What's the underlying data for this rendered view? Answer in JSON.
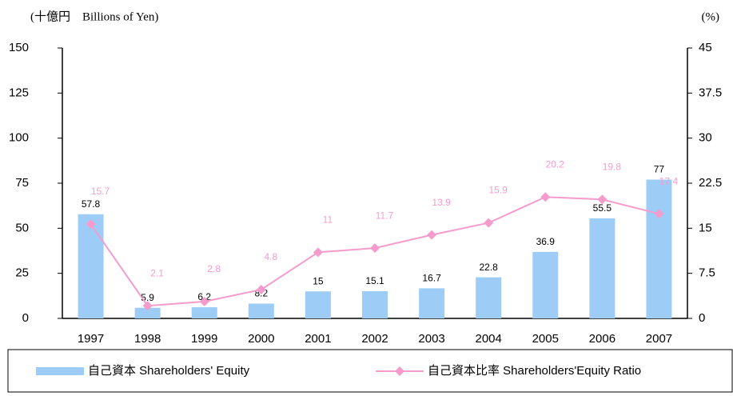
{
  "chart_data": {
    "type": "bar-line",
    "y_label": "(十億円　Billions of Yen)",
    "y2_label": "(%)",
    "categories": [
      "1997",
      "1998",
      "1999",
      "2000",
      "2001",
      "2002",
      "2003",
      "2004",
      "2005",
      "2006",
      "2007"
    ],
    "series": [
      {
        "name": "自己資本  Shareholders' Equity",
        "type": "bar",
        "color": "#9dcdf7",
        "values": [
          57.8,
          5.9,
          6.2,
          8.2,
          15,
          15.1,
          16.7,
          22.8,
          36.9,
          55.5,
          77
        ]
      },
      {
        "name": "自己資本比率 Shareholders'Equity Ratio",
        "type": "line",
        "axis": "y2",
        "color": "#f59ccc",
        "values": [
          15.7,
          2.1,
          2.8,
          4.8,
          11,
          11.7,
          13.9,
          15.9,
          20.2,
          19.8,
          17.4
        ]
      }
    ],
    "ylim": [
      0,
      150
    ],
    "yticks": [
      0,
      25,
      50,
      75,
      100,
      125,
      150
    ],
    "y2lim": [
      0,
      45
    ],
    "y2ticks": [
      0,
      7.5,
      15,
      22.5,
      30,
      37.5,
      45
    ],
    "legend": "bottom"
  }
}
